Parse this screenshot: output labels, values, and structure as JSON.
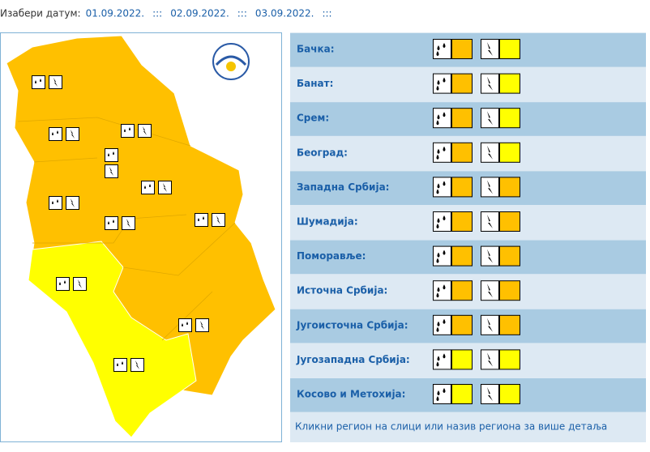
{
  "header": {
    "label": "Изабери датум:",
    "dates": [
      "01.09.2022.",
      "02.09.2022.",
      "03.09.2022."
    ],
    "separator": ":::"
  },
  "regions": [
    {
      "name": "Бачка:",
      "rain": "#ffc000",
      "storm": "#ffff00"
    },
    {
      "name": "Банат:",
      "rain": "#ffc000",
      "storm": "#ffff00"
    },
    {
      "name": "Срем:",
      "rain": "#ffc000",
      "storm": "#ffff00"
    },
    {
      "name": "Београд:",
      "rain": "#ffc000",
      "storm": "#ffff00"
    },
    {
      "name": "Западна Србија:",
      "rain": "#ffc000",
      "storm": "#ffc000"
    },
    {
      "name": "Шумадија:",
      "rain": "#ffc000",
      "storm": "#ffc000"
    },
    {
      "name": "Поморавље:",
      "rain": "#ffc000",
      "storm": "#ffc000"
    },
    {
      "name": "Источна Србија:",
      "rain": "#ffc000",
      "storm": "#ffc000"
    },
    {
      "name": "Југоисточна Србија:",
      "rain": "#ffc000",
      "storm": "#ffc000"
    },
    {
      "name": "Југозападна Србија:",
      "rain": "#ffff00",
      "storm": "#ffff00"
    },
    {
      "name": "Косово и Метохија:",
      "rain": "#ffff00",
      "storm": "#ffff00"
    }
  ],
  "footer": "Кликни регион на слици или назив региона за више детаља"
}
